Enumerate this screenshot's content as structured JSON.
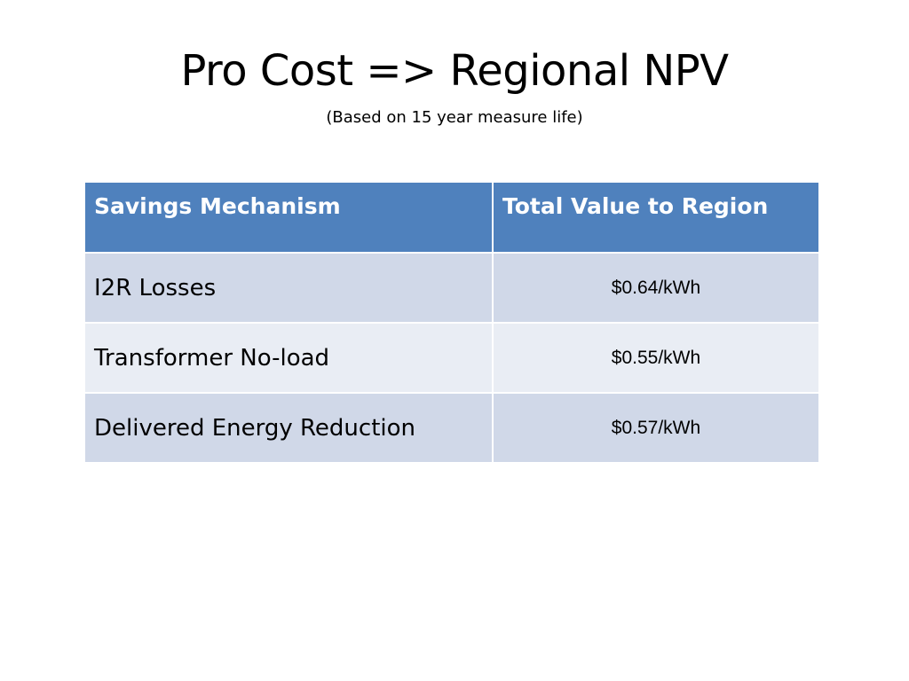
{
  "slide": {
    "title": "Pro Cost => Regional NPV",
    "subtitle": "(Based on 15 year measure life)"
  },
  "table": {
    "headers": [
      "Savings Mechanism",
      "Total Value to Region"
    ],
    "rows": [
      {
        "mechanism": "I2R Losses",
        "value": "$0.64/kWh"
      },
      {
        "mechanism": "Transformer No-load",
        "value": "$0.55/kWh"
      },
      {
        "mechanism": "Delivered Energy Reduction",
        "value": "$0.57/kWh"
      }
    ]
  },
  "colors": {
    "header_background": "#4f81bd",
    "header_text": "#ffffff",
    "row_band_dark": "#d0d8e8",
    "row_band_light": "#e9edf4"
  }
}
